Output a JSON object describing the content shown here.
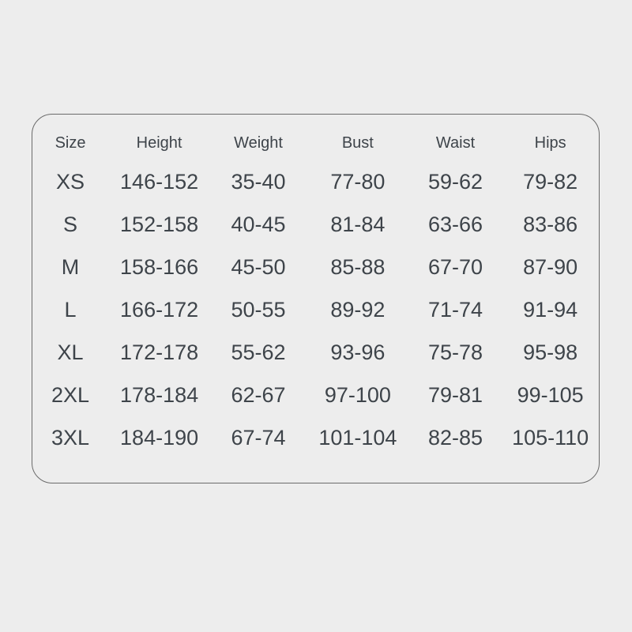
{
  "colors": {
    "background": "#ededed",
    "card_border": "#6a6a6a",
    "text": "#3e444a"
  },
  "table": {
    "columns": [
      "Size",
      "Height",
      "Weight",
      "Bust",
      "Waist",
      "Hips"
    ],
    "rows": [
      [
        "XS",
        "146-152",
        "35-40",
        "77-80",
        "59-62",
        "79-82"
      ],
      [
        "S",
        "152-158",
        "40-45",
        "81-84",
        "63-66",
        "83-86"
      ],
      [
        "M",
        "158-166",
        "45-50",
        "85-88",
        "67-70",
        "87-90"
      ],
      [
        "L",
        "166-172",
        "50-55",
        "89-92",
        "71-74",
        "91-94"
      ],
      [
        "XL",
        "172-178",
        "55-62",
        "93-96",
        "75-78",
        "95-98"
      ],
      [
        "2XL",
        "178-184",
        "62-67",
        "97-100",
        "79-81",
        "99-105"
      ],
      [
        "3XL",
        "184-190",
        "67-74",
        "101-104",
        "82-85",
        "105-110"
      ]
    ]
  },
  "chart_data": {
    "type": "table",
    "title": "",
    "columns": [
      "Size",
      "Height",
      "Weight",
      "Bust",
      "Waist",
      "Hips"
    ],
    "rows": [
      [
        "XS",
        "146-152",
        "35-40",
        "77-80",
        "59-62",
        "79-82"
      ],
      [
        "S",
        "152-158",
        "40-45",
        "81-84",
        "63-66",
        "83-86"
      ],
      [
        "M",
        "158-166",
        "45-50",
        "85-88",
        "67-70",
        "87-90"
      ],
      [
        "L",
        "166-172",
        "50-55",
        "89-92",
        "71-74",
        "91-94"
      ],
      [
        "XL",
        "172-178",
        "55-62",
        "93-96",
        "75-78",
        "95-98"
      ],
      [
        "2XL",
        "178-184",
        "62-67",
        "97-100",
        "79-81",
        "99-105"
      ],
      [
        "3XL",
        "184-190",
        "67-74",
        "101-104",
        "82-85",
        "105-110"
      ]
    ],
    "layout_hints": {
      "card_rounded": true,
      "grid": "none",
      "header_row": true
    }
  }
}
